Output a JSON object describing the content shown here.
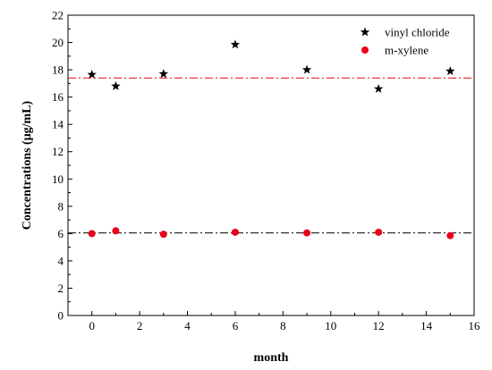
{
  "chart_data": {
    "type": "scatter",
    "xlabel": "month",
    "ylabel": "Concentrations (μg/mL)",
    "xlim": [
      -1,
      16
    ],
    "ylim": [
      0,
      22
    ],
    "x_ticks": [
      0,
      2,
      4,
      6,
      8,
      10,
      12,
      14,
      16
    ],
    "y_ticks": [
      0,
      2,
      4,
      6,
      8,
      10,
      12,
      14,
      16,
      18,
      20,
      22
    ],
    "grid": false,
    "legend_position": "top-right",
    "series": [
      {
        "name": "vinyl chloride",
        "marker": "star",
        "color": "#000000",
        "x": [
          0,
          1,
          3,
          6,
          9,
          12,
          15
        ],
        "y": [
          17.65,
          16.8,
          17.7,
          19.85,
          18.0,
          16.6,
          17.9
        ],
        "reference_line": {
          "y": 17.4,
          "style": "dash-dot",
          "color": "#e8001c"
        }
      },
      {
        "name": "m-xylene",
        "marker": "circle",
        "color": "#e8001c",
        "x": [
          0,
          1,
          3,
          6,
          9,
          12,
          15
        ],
        "y": [
          6.0,
          6.2,
          5.95,
          6.1,
          6.05,
          6.1,
          5.85
        ],
        "reference_line": {
          "y": 6.05,
          "style": "dash-dot",
          "color": "#000000"
        }
      }
    ]
  }
}
